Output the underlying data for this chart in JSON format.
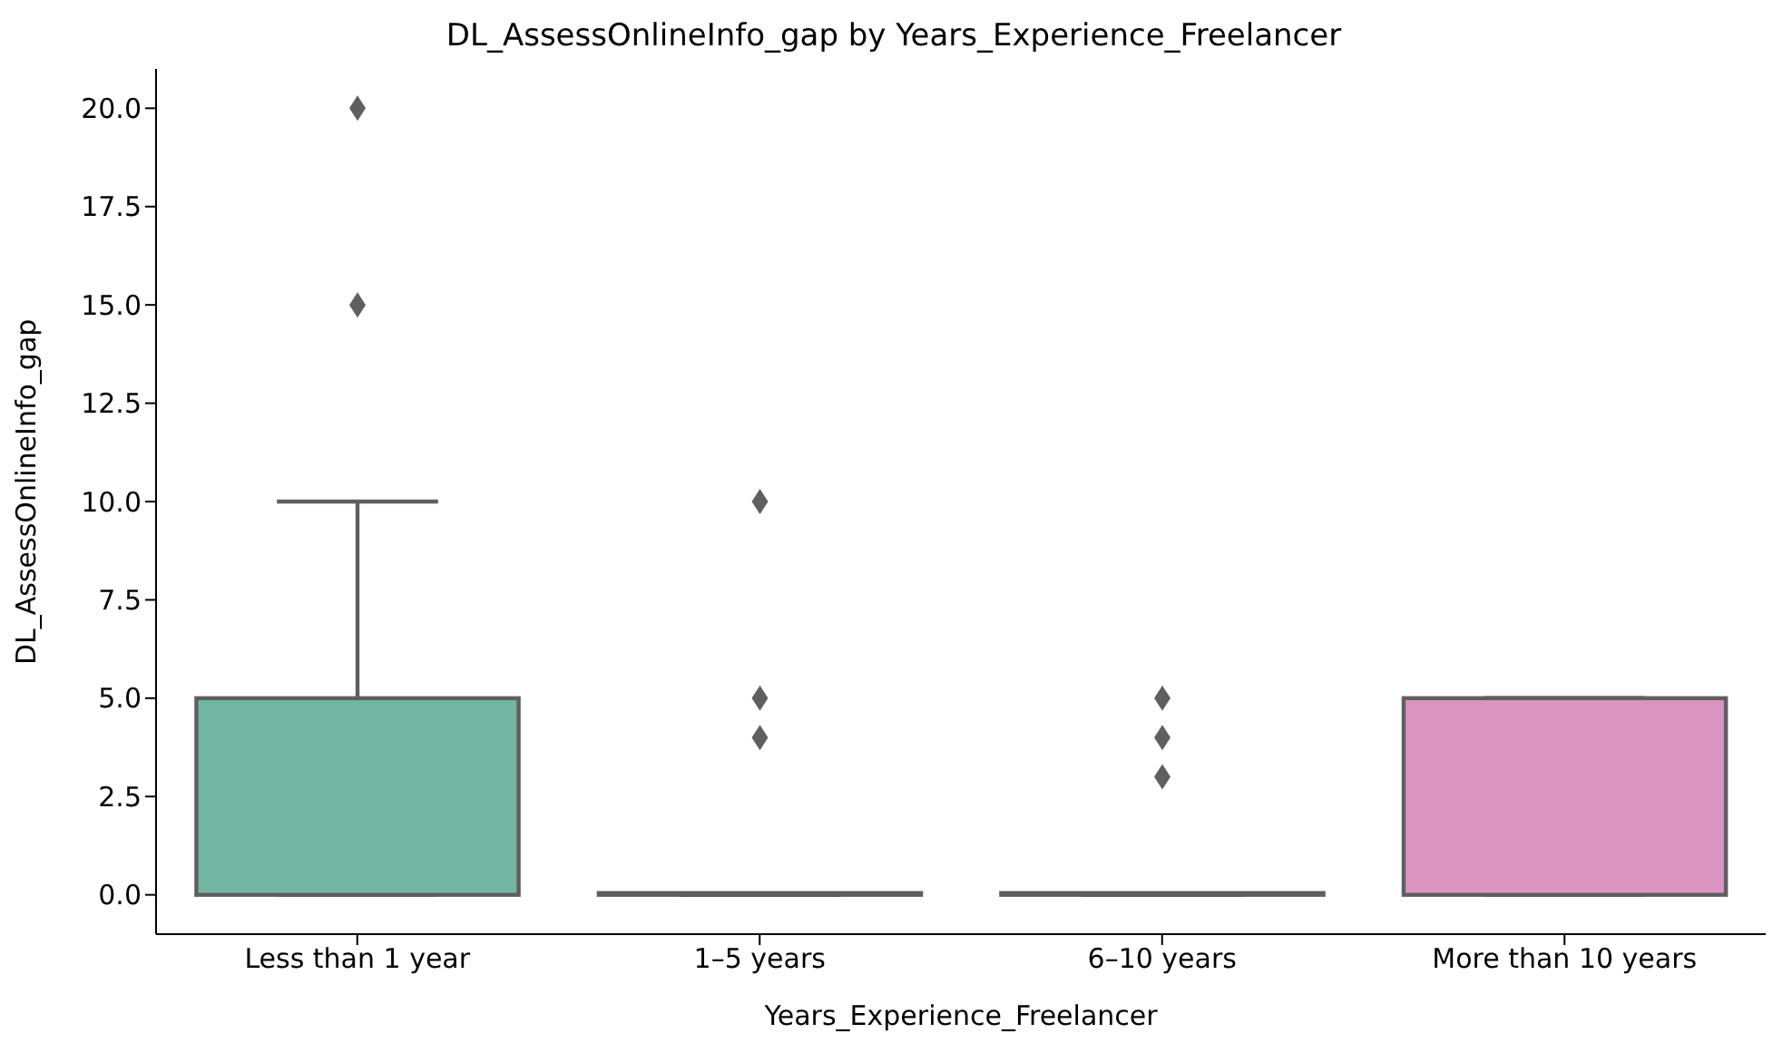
{
  "chart_data": {
    "type": "box",
    "title": "DL_AssessOnlineInfo_gap by Years_Experience_Freelancer",
    "xlabel": "Years_Experience_Freelancer",
    "ylabel": "DL_AssessOnlineInfo_gap",
    "categories": [
      "Less than 1 year",
      "1–5 years",
      "6–10 years",
      "More than 10 years"
    ],
    "colors": [
      "#72b6a1",
      "#e99675",
      "#95a3c6",
      "#da94c0"
    ],
    "boxes": [
      {
        "low": 0,
        "q1": 0,
        "median": 0,
        "q3": 5,
        "high": 10,
        "outliers": [
          15,
          20
        ]
      },
      {
        "low": 0,
        "q1": 0,
        "median": 0,
        "q3": 0,
        "high": 0,
        "outliers": [
          4,
          5,
          10
        ]
      },
      {
        "low": 0,
        "q1": 0,
        "median": 0,
        "q3": 0,
        "high": 0,
        "outliers": [
          3,
          4,
          5
        ]
      },
      {
        "low": 0,
        "q1": 0,
        "median": 0,
        "q3": 5,
        "high": 5
      }
    ],
    "ylim": [
      -1,
      21
    ],
    "yticks": [
      {
        "value": 0,
        "label": "0.0"
      },
      {
        "value": 2.5,
        "label": "2.5"
      },
      {
        "value": 5,
        "label": "5.0"
      },
      {
        "value": 7.5,
        "label": "7.5"
      },
      {
        "value": 10,
        "label": "10.0"
      },
      {
        "value": 12.5,
        "label": "12.5"
      },
      {
        "value": 15,
        "label": "15.0"
      },
      {
        "value": 17.5,
        "label": "17.5"
      },
      {
        "value": 20,
        "label": "20.0"
      }
    ],
    "grid": false,
    "legend": false
  }
}
